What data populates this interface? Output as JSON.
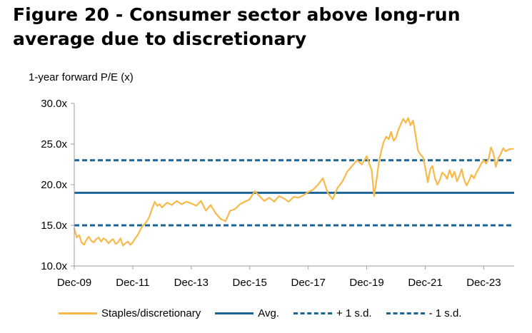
{
  "title": "Figure 20 - Consumer sector above long-run average due to discretionary",
  "ylabel": "1-year forward P/E (x)",
  "colors": {
    "series": "#F9B94A",
    "avg": "#1A6496",
    "sd": "#1A6496",
    "axis": "#9E9E9E"
  },
  "chart_data": {
    "type": "line",
    "title": "",
    "ylabel": "1-year forward P/E (x)",
    "xlabel": "",
    "ylim": [
      10,
      30
    ],
    "xlim": [
      "2009-12-01",
      "2024-12-15"
    ],
    "yticks": [
      {
        "value": 10,
        "label": "10.0x"
      },
      {
        "value": 15,
        "label": "15.0x"
      },
      {
        "value": 20,
        "label": "20.0x"
      },
      {
        "value": 25,
        "label": "25.0x"
      },
      {
        "value": 30,
        "label": "30.0x"
      }
    ],
    "xticks": [
      {
        "date": "2009-12-01",
        "label": "Dec-09"
      },
      {
        "date": "2011-12-01",
        "label": "Dec-11"
      },
      {
        "date": "2013-12-01",
        "label": "Dec-13"
      },
      {
        "date": "2015-12-01",
        "label": "Dec-15"
      },
      {
        "date": "2017-12-01",
        "label": "Dec-17"
      },
      {
        "date": "2019-12-01",
        "label": "Dec-19"
      },
      {
        "date": "2021-12-01",
        "label": "Dec-21"
      },
      {
        "date": "2023-12-01",
        "label": "Dec-23"
      }
    ],
    "grid": false,
    "legend_position": "bottom",
    "series": [
      {
        "name": "Staples/discretionary",
        "style": "solid",
        "x": [
          "2009-12-01",
          "2010-01-01",
          "2010-02-01",
          "2010-03-01",
          "2010-04-01",
          "2010-05-01",
          "2010-06-01",
          "2010-07-01",
          "2010-08-01",
          "2010-09-01",
          "2010-10-01",
          "2010-11-01",
          "2010-12-01",
          "2011-01-01",
          "2011-02-01",
          "2011-03-01",
          "2011-04-01",
          "2011-05-01",
          "2011-06-01",
          "2011-07-01",
          "2011-08-01",
          "2011-09-01",
          "2011-10-01",
          "2011-11-01",
          "2011-12-01",
          "2012-01-01",
          "2012-02-01",
          "2012-03-01",
          "2012-04-01",
          "2012-05-01",
          "2012-06-01",
          "2012-07-01",
          "2012-08-01",
          "2012-09-01",
          "2012-10-01",
          "2012-11-01",
          "2012-12-01",
          "2013-02-01",
          "2013-04-01",
          "2013-06-01",
          "2013-08-01",
          "2013-10-01",
          "2013-12-01",
          "2014-02-01",
          "2014-04-01",
          "2014-06-01",
          "2014-08-01",
          "2014-10-01",
          "2014-12-01",
          "2015-02-01",
          "2015-04-01",
          "2015-06-01",
          "2015-08-01",
          "2015-10-01",
          "2015-12-01",
          "2016-02-01",
          "2016-04-01",
          "2016-06-01",
          "2016-08-01",
          "2016-10-01",
          "2016-12-01",
          "2017-02-01",
          "2017-04-01",
          "2017-06-01",
          "2017-08-01",
          "2017-10-01",
          "2017-12-01",
          "2018-02-01",
          "2018-04-01",
          "2018-06-01",
          "2018-08-01",
          "2018-10-01",
          "2018-12-01",
          "2019-02-01",
          "2019-04-01",
          "2019-06-01",
          "2019-08-01",
          "2019-10-01",
          "2019-12-01",
          "2020-01-01",
          "2020-02-01",
          "2020-03-01",
          "2020-04-01",
          "2020-05-01",
          "2020-06-01",
          "2020-07-01",
          "2020-08-01",
          "2020-09-01",
          "2020-10-01",
          "2020-11-01",
          "2020-12-01",
          "2021-01-01",
          "2021-02-01",
          "2021-03-01",
          "2021-04-01",
          "2021-05-01",
          "2021-06-01",
          "2021-07-01",
          "2021-08-01",
          "2021-09-01",
          "2021-10-01",
          "2021-11-01",
          "2021-12-01",
          "2022-01-01",
          "2022-02-01",
          "2022-03-01",
          "2022-04-01",
          "2022-05-01",
          "2022-06-01",
          "2022-07-01",
          "2022-08-01",
          "2022-09-01",
          "2022-10-01",
          "2022-11-01",
          "2022-12-01",
          "2023-01-01",
          "2023-02-01",
          "2023-03-01",
          "2023-04-01",
          "2023-05-01",
          "2023-06-01",
          "2023-07-01",
          "2023-08-01",
          "2023-09-01",
          "2023-10-01",
          "2023-11-01",
          "2023-12-01",
          "2024-01-01",
          "2024-02-01",
          "2024-03-01",
          "2024-04-01",
          "2024-05-01",
          "2024-06-01",
          "2024-07-01",
          "2024-08-01",
          "2024-09-01",
          "2024-10-01",
          "2024-11-01",
          "2024-12-01"
        ],
        "values": [
          14.6,
          13.5,
          13.8,
          12.9,
          12.6,
          13.2,
          13.6,
          13.1,
          12.9,
          13.3,
          13.5,
          13.0,
          13.4,
          13.2,
          12.8,
          13.1,
          13.3,
          12.7,
          12.9,
          13.4,
          12.5,
          12.8,
          13.0,
          12.6,
          12.9,
          13.4,
          13.8,
          14.4,
          14.9,
          15.2,
          15.6,
          16.2,
          17.1,
          17.9,
          17.4,
          17.6,
          17.2,
          17.8,
          17.5,
          18.0,
          17.6,
          17.9,
          17.7,
          17.4,
          18.0,
          16.8,
          17.5,
          16.5,
          15.8,
          15.5,
          16.8,
          17.0,
          17.6,
          17.9,
          18.2,
          19.2,
          18.6,
          18.0,
          18.4,
          17.9,
          18.6,
          18.3,
          17.9,
          18.5,
          18.4,
          18.7,
          19.1,
          19.4,
          20.0,
          20.8,
          19.0,
          18.2,
          19.6,
          20.4,
          21.6,
          22.3,
          23.0,
          22.5,
          23.5,
          22.6,
          21.8,
          18.6,
          20.5,
          22.8,
          24.2,
          25.3,
          25.9,
          25.6,
          26.5,
          25.4,
          25.8,
          26.8,
          27.5,
          28.1,
          27.6,
          28.2,
          27.3,
          27.9,
          26.2,
          24.2,
          23.7,
          23.4,
          22.1,
          20.3,
          21.9,
          22.3,
          20.8,
          20.0,
          20.6,
          21.5,
          21.2,
          20.7,
          21.8,
          20.9,
          21.6,
          20.4,
          21.1,
          21.9,
          20.6,
          19.9,
          20.5,
          21.2,
          20.8,
          21.5,
          22.0,
          22.6,
          23.0,
          22.6,
          23.2,
          24.6,
          23.8,
          22.2,
          23.3,
          23.8,
          24.5,
          24.1,
          24.3,
          24.4,
          24.4
        ]
      },
      {
        "name": "Avg.",
        "style": "solid",
        "value": 19.0
      },
      {
        "name": "+ 1 s.d.",
        "style": "dashed",
        "value": 23.0
      },
      {
        "name": "- 1 s.d.",
        "style": "dashed",
        "value": 15.0
      }
    ]
  }
}
